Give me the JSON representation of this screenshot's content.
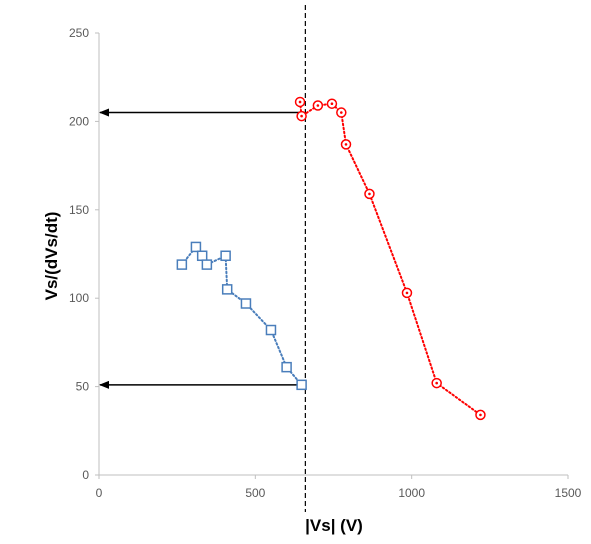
{
  "chart_data": {
    "type": "scatter",
    "xlabel": "|Vs|  (V)",
    "ylabel": "Vs/(dVs/dt)",
    "xlim": [
      0,
      1500
    ],
    "ylim": [
      0,
      250
    ],
    "x_ticks": [
      0,
      500,
      1000,
      1500
    ],
    "y_ticks": [
      0,
      50,
      100,
      150,
      200,
      250
    ],
    "grid": false,
    "legend": "none",
    "series": [
      {
        "marker": "square",
        "line": "dotted",
        "color": "#4a7ebb",
        "x": [
          265,
          310,
          330,
          345,
          405,
          410,
          470,
          550,
          600,
          648
        ],
        "y": [
          119,
          129,
          124,
          119,
          124,
          105,
          97,
          82,
          61,
          51
        ]
      },
      {
        "marker": "circle",
        "line": "dotted",
        "color": "#ff0000",
        "x": [
          643,
          648,
          700,
          745,
          775,
          790,
          865,
          985,
          1080,
          1220
        ],
        "y": [
          211,
          203,
          209,
          210,
          205,
          187,
          159,
          103,
          52,
          34
        ]
      }
    ],
    "reference_line": {
      "x": 660,
      "style": "dashed",
      "color": "#000000"
    },
    "arrows": [
      {
        "from": [
          655,
          205
        ],
        "to": [
          0,
          205
        ]
      },
      {
        "from": [
          648,
          51
        ],
        "to": [
          0,
          51
        ]
      }
    ]
  }
}
